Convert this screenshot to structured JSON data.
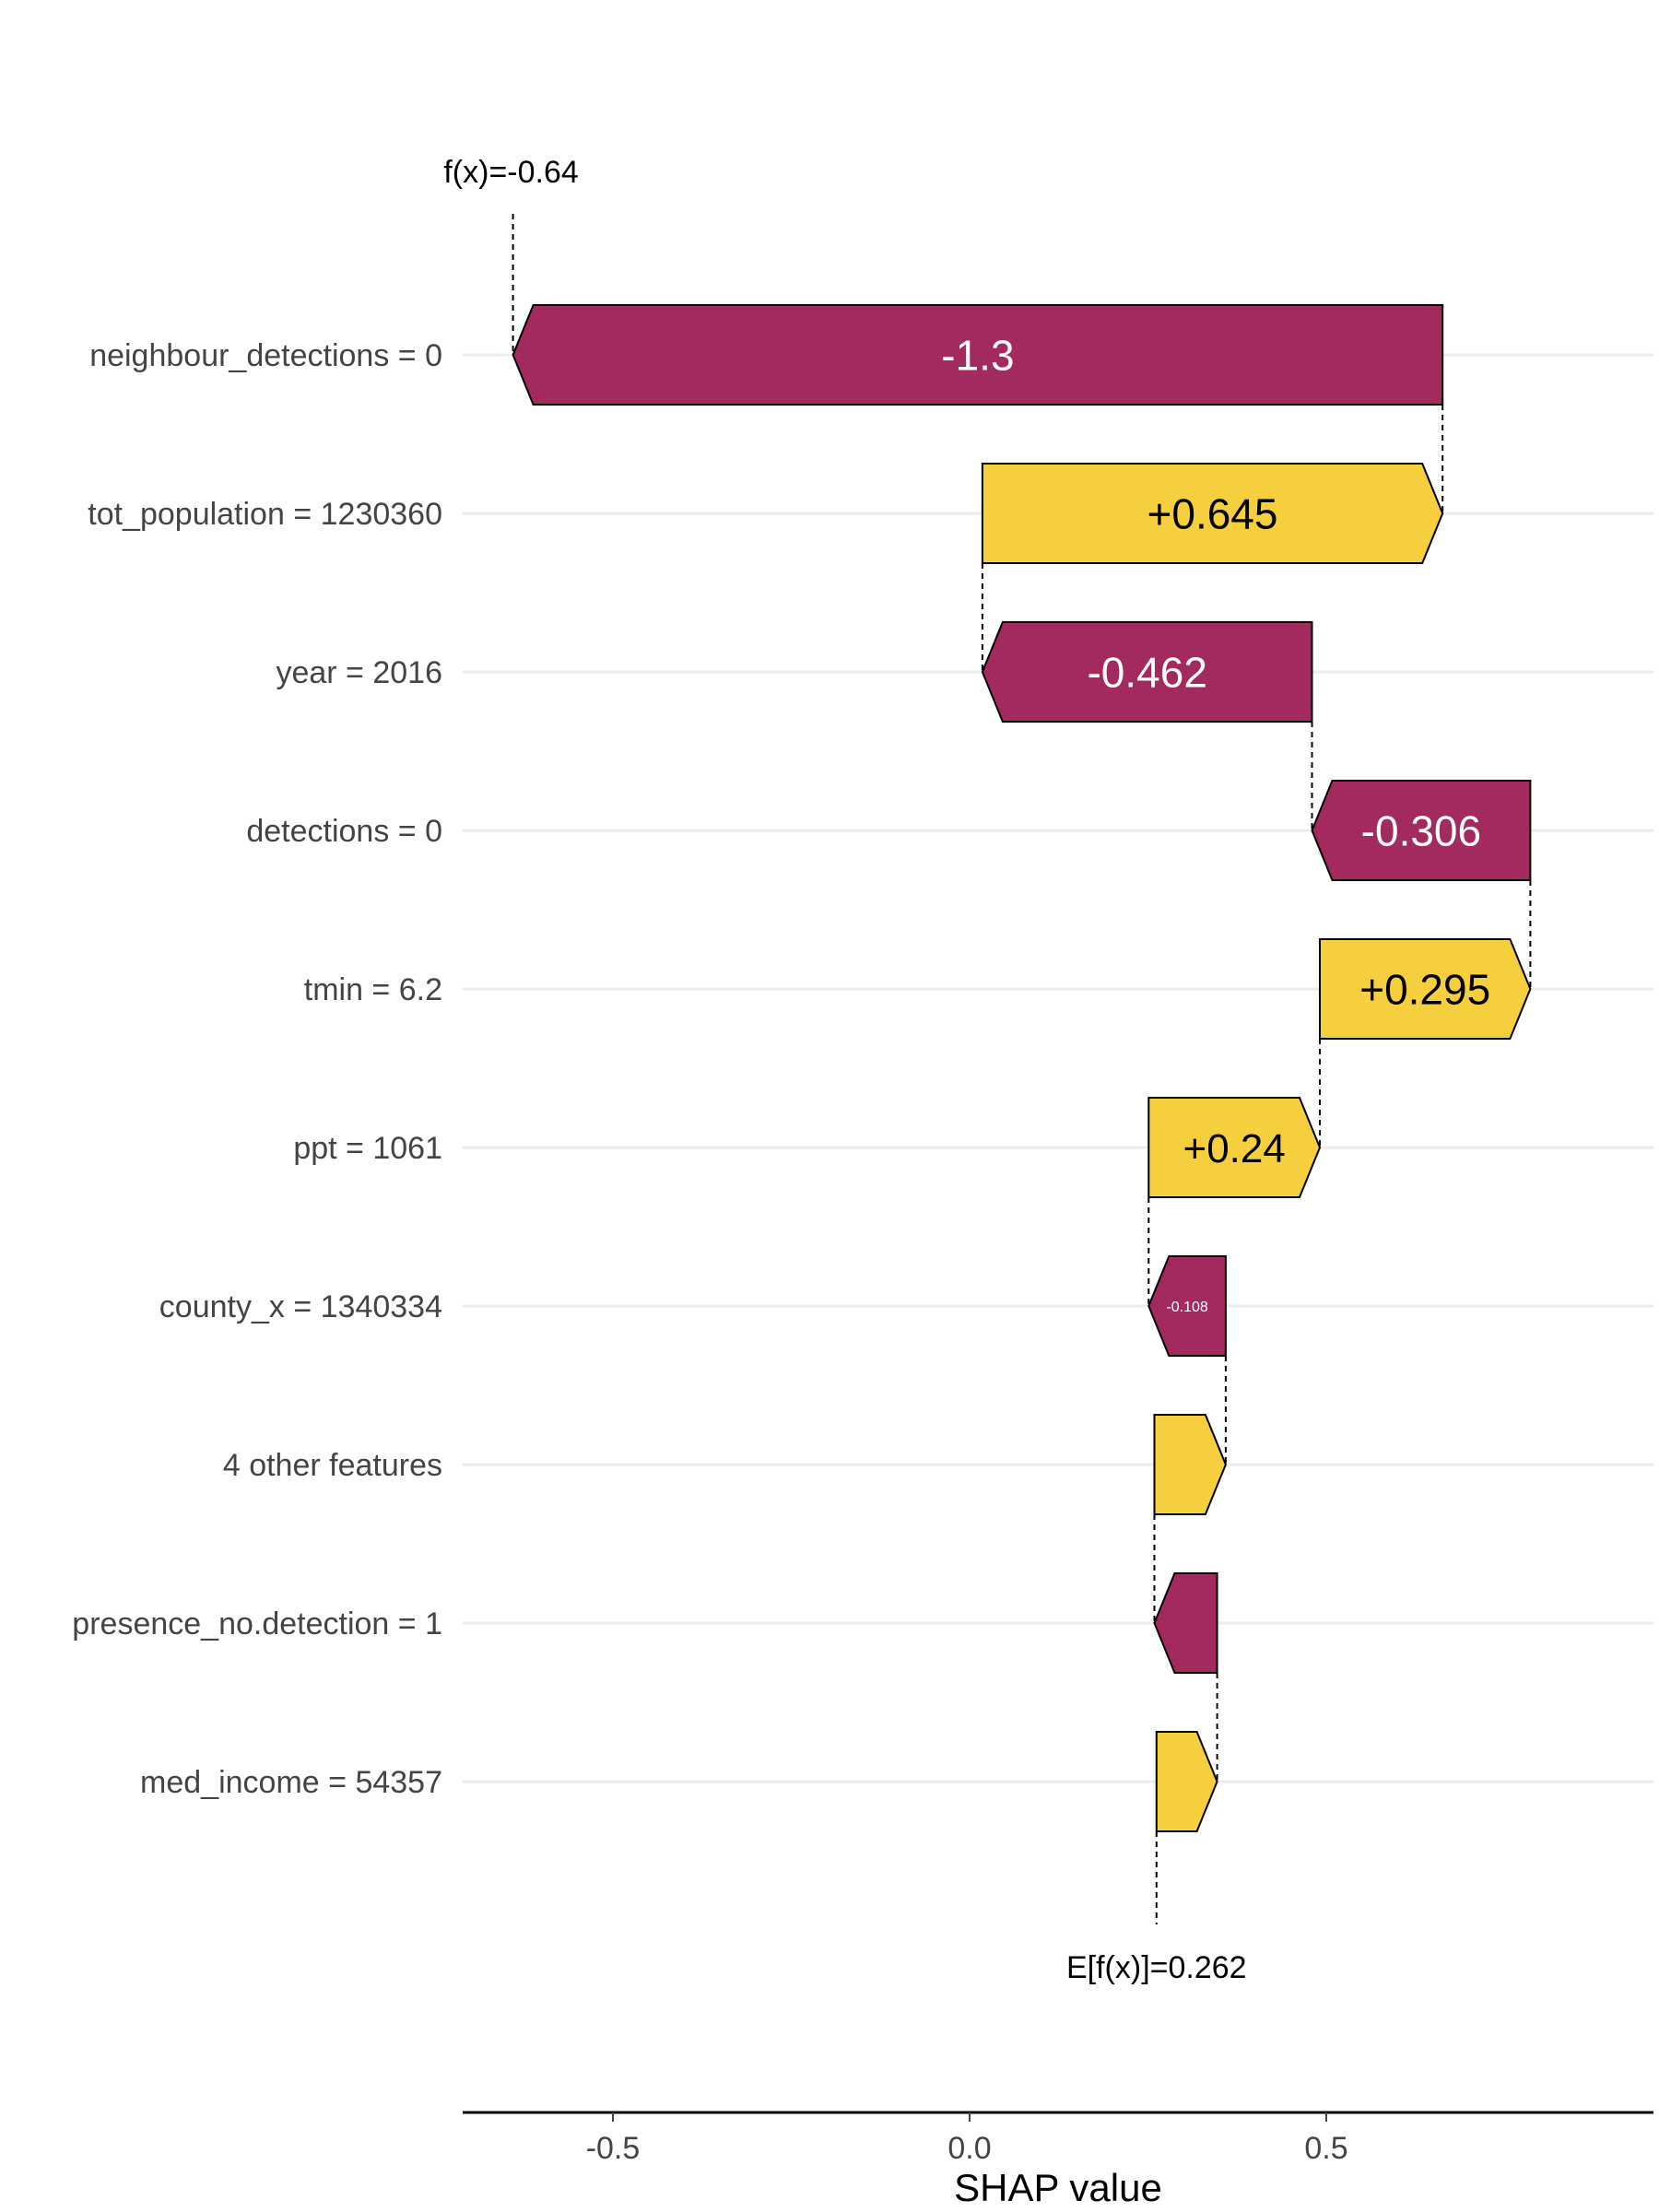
{
  "chart_data": {
    "type": "waterfall",
    "xlabel": "SHAP value",
    "xlim": [
      -0.71,
      0.96
    ],
    "xticks": [
      -0.5,
      0.0,
      0.5
    ],
    "xtick_labels": [
      "-0.5",
      "0.0",
      "0.5"
    ],
    "base_value": 0.262,
    "output_value": -0.64,
    "base_label": "E[f(x)]=0.262",
    "output_label": "f(x)=-0.64",
    "colors": {
      "positive": "#F5CF3D",
      "negative": "#A32A5E"
    },
    "features": [
      {
        "label": "neighbour_detections = 0",
        "value": -1.302,
        "value_label": "-1.3"
      },
      {
        "label": "tot_population = 1230360",
        "value": 0.645,
        "value_label": "+0.645"
      },
      {
        "label": "year = 2016",
        "value": -0.462,
        "value_label": "-0.462"
      },
      {
        "label": "detections = 0",
        "value": -0.306,
        "value_label": "-0.306"
      },
      {
        "label": "tmin = 6.2",
        "value": 0.295,
        "value_label": "+0.295"
      },
      {
        "label": "ppt = 1061",
        "value": 0.24,
        "value_label": "+0.24"
      },
      {
        "label": "county_x = 1340334",
        "value": -0.108,
        "value_label": "-0.108"
      },
      {
        "label": "4 other features",
        "value": 0.1,
        "value_label": ""
      },
      {
        "label": "presence_no.detection = 1",
        "value": -0.088,
        "value_label": ""
      },
      {
        "label": "med_income = 54357",
        "value": 0.085,
        "value_label": ""
      }
    ]
  }
}
